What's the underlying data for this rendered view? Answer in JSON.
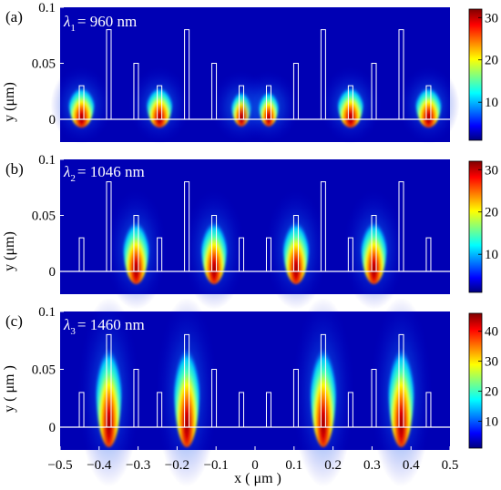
{
  "chart_data": [
    {
      "type": "heatmap",
      "panel_label": "(a)",
      "wavelength_symbol": "λ",
      "wavelength_subscript": "1",
      "wavelength_text": "= 960 nm",
      "ylabel": "y (μm)",
      "yticks": [
        0,
        0.05,
        0.1
      ],
      "ytick_labels": [
        "0",
        "0.05",
        "0.1"
      ],
      "xlim": [
        -0.5,
        0.5
      ],
      "ylim": [
        -0.02,
        0.1
      ],
      "colorbar": {
        "min": 1,
        "max": 32,
        "ticks": [
          10,
          20,
          30
        ],
        "tick_labels": [
          "10",
          "20",
          "30"
        ]
      },
      "hotspots": [
        {
          "x": -0.445,
          "top": 0.03,
          "intensity": 1.0
        },
        {
          "x": -0.245,
          "top": 0.03,
          "intensity": 1.0
        },
        {
          "x": -0.035,
          "top": 0.025,
          "intensity": 0.7
        },
        {
          "x": 0.035,
          "top": 0.025,
          "intensity": 0.7
        },
        {
          "x": 0.245,
          "top": 0.03,
          "intensity": 1.0
        },
        {
          "x": 0.445,
          "top": 0.03,
          "intensity": 1.0
        }
      ],
      "pillars": [
        {
          "x": -0.445,
          "h": 0.03
        },
        {
          "x": -0.375,
          "h": 0.08
        },
        {
          "x": -0.305,
          "h": 0.05
        },
        {
          "x": -0.245,
          "h": 0.03
        },
        {
          "x": -0.175,
          "h": 0.08
        },
        {
          "x": -0.105,
          "h": 0.05
        },
        {
          "x": -0.035,
          "h": 0.03
        },
        {
          "x": 0.035,
          "h": 0.03
        },
        {
          "x": 0.105,
          "h": 0.05
        },
        {
          "x": 0.175,
          "h": 0.08
        },
        {
          "x": 0.245,
          "h": 0.03
        },
        {
          "x": 0.305,
          "h": 0.05
        },
        {
          "x": 0.375,
          "h": 0.08
        },
        {
          "x": 0.445,
          "h": 0.03
        }
      ]
    },
    {
      "type": "heatmap",
      "panel_label": "(b)",
      "wavelength_symbol": "λ",
      "wavelength_subscript": "2",
      "wavelength_text": "= 1046 nm",
      "ylabel": "y (μm)",
      "yticks": [
        0,
        0.05,
        0.1
      ],
      "ytick_labels": [
        "0",
        "0.05",
        "0.1"
      ],
      "xlim": [
        -0.5,
        0.5
      ],
      "ylim": [
        -0.02,
        0.1
      ],
      "colorbar": {
        "min": 1,
        "max": 32,
        "ticks": [
          10,
          20,
          30
        ],
        "tick_labels": [
          "10",
          "20",
          "30"
        ]
      },
      "hotspots": [
        {
          "x": -0.305,
          "top": 0.05,
          "intensity": 1.0
        },
        {
          "x": -0.105,
          "top": 0.05,
          "intensity": 1.0
        },
        {
          "x": 0.105,
          "top": 0.05,
          "intensity": 1.0
        },
        {
          "x": 0.305,
          "top": 0.05,
          "intensity": 1.0
        }
      ],
      "pillars": [
        {
          "x": -0.445,
          "h": 0.03
        },
        {
          "x": -0.375,
          "h": 0.08
        },
        {
          "x": -0.305,
          "h": 0.05
        },
        {
          "x": -0.245,
          "h": 0.03
        },
        {
          "x": -0.175,
          "h": 0.08
        },
        {
          "x": -0.105,
          "h": 0.05
        },
        {
          "x": -0.035,
          "h": 0.03
        },
        {
          "x": 0.035,
          "h": 0.03
        },
        {
          "x": 0.105,
          "h": 0.05
        },
        {
          "x": 0.175,
          "h": 0.08
        },
        {
          "x": 0.245,
          "h": 0.03
        },
        {
          "x": 0.305,
          "h": 0.05
        },
        {
          "x": 0.375,
          "h": 0.08
        },
        {
          "x": 0.445,
          "h": 0.03
        }
      ]
    },
    {
      "type": "heatmap",
      "panel_label": "(c)",
      "wavelength_symbol": "λ",
      "wavelength_subscript": "3",
      "wavelength_text": "= 1460 nm",
      "ylabel": "y ( μm )",
      "xlabel": "x ( μm )",
      "xticks": [
        -0.5,
        -0.4,
        -0.3,
        -0.2,
        -0.1,
        0,
        0.1,
        0.2,
        0.3,
        0.4,
        0.5
      ],
      "xtick_labels": [
        "−0.5",
        "−0.4",
        "−0.3",
        "−0.2",
        "−0.1",
        "0",
        "0.1",
        "0.2",
        "0.3",
        "0.4",
        "0.5"
      ],
      "yticks": [
        0,
        0.05,
        0.1
      ],
      "ytick_labels": [
        "0",
        "0.05",
        "0.1"
      ],
      "xlim": [
        -0.5,
        0.5
      ],
      "ylim": [
        -0.02,
        0.1
      ],
      "colorbar": {
        "min": 1,
        "max": 46,
        "ticks": [
          10,
          20,
          30,
          40
        ],
        "tick_labels": [
          "10",
          "20",
          "30",
          "40"
        ]
      },
      "hotspots": [
        {
          "x": -0.375,
          "top": 0.08,
          "intensity": 1.0
        },
        {
          "x": -0.175,
          "top": 0.08,
          "intensity": 1.0
        },
        {
          "x": 0.175,
          "top": 0.08,
          "intensity": 1.0
        },
        {
          "x": 0.375,
          "top": 0.08,
          "intensity": 1.0
        }
      ],
      "pillars": [
        {
          "x": -0.445,
          "h": 0.03
        },
        {
          "x": -0.375,
          "h": 0.08
        },
        {
          "x": -0.305,
          "h": 0.05
        },
        {
          "x": -0.245,
          "h": 0.03
        },
        {
          "x": -0.175,
          "h": 0.08
        },
        {
          "x": -0.105,
          "h": 0.05
        },
        {
          "x": -0.035,
          "h": 0.03
        },
        {
          "x": 0.035,
          "h": 0.03
        },
        {
          "x": 0.105,
          "h": 0.05
        },
        {
          "x": 0.175,
          "h": 0.08
        },
        {
          "x": 0.245,
          "h": 0.03
        },
        {
          "x": 0.305,
          "h": 0.05
        },
        {
          "x": 0.375,
          "h": 0.08
        },
        {
          "x": 0.445,
          "h": 0.03
        }
      ]
    }
  ]
}
